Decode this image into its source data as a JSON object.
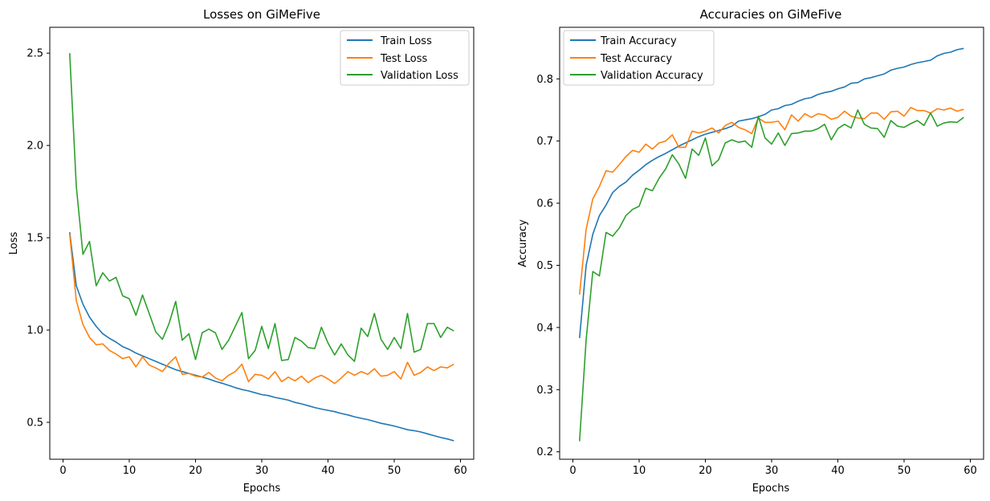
{
  "colors": {
    "train": "#1f77b4",
    "test": "#ff7f0e",
    "validation": "#2ca02c"
  },
  "chart_data": [
    {
      "type": "line",
      "title": "Losses on GiMeFive",
      "xlabel": "Epochs",
      "ylabel": "Loss",
      "xlim": [
        -2,
        62
      ],
      "ylim": [
        0.3,
        2.64
      ],
      "xticks": [
        0,
        10,
        20,
        30,
        40,
        50,
        60
      ],
      "yticks": [
        0.5,
        1.0,
        1.5,
        2.0,
        2.5
      ],
      "ytick_labels": [
        "0.5",
        "1.0",
        "1.5",
        "2.0",
        "2.5"
      ],
      "grid": false,
      "legend_position": "top-right",
      "x": [
        1,
        2,
        3,
        4,
        5,
        6,
        7,
        8,
        9,
        10,
        11,
        12,
        13,
        14,
        15,
        16,
        17,
        18,
        19,
        20,
        21,
        22,
        23,
        24,
        25,
        26,
        27,
        28,
        29,
        30,
        31,
        32,
        33,
        34,
        35,
        36,
        37,
        38,
        39,
        40,
        41,
        42,
        43,
        44,
        45,
        46,
        47,
        48,
        49,
        50,
        51,
        52,
        53,
        54,
        55,
        56,
        57,
        58,
        59
      ],
      "series": [
        {
          "name": "Train Loss",
          "color": "#1f77b4",
          "values": [
            1.53,
            1.24,
            1.14,
            1.07,
            1.02,
            0.98,
            0.955,
            0.935,
            0.91,
            0.895,
            0.875,
            0.86,
            0.845,
            0.83,
            0.815,
            0.8,
            0.785,
            0.775,
            0.765,
            0.755,
            0.745,
            0.735,
            0.722,
            0.712,
            0.7,
            0.688,
            0.678,
            0.67,
            0.66,
            0.65,
            0.645,
            0.635,
            0.628,
            0.62,
            0.608,
            0.6,
            0.59,
            0.58,
            0.572,
            0.565,
            0.558,
            0.548,
            0.54,
            0.53,
            0.522,
            0.515,
            0.505,
            0.495,
            0.488,
            0.48,
            0.47,
            0.46,
            0.455,
            0.448,
            0.438,
            0.428,
            0.418,
            0.41,
            0.4
          ]
        },
        {
          "name": "Test Loss",
          "color": "#ff7f0e",
          "values": [
            1.52,
            1.16,
            1.03,
            0.96,
            0.92,
            0.925,
            0.89,
            0.87,
            0.845,
            0.855,
            0.8,
            0.855,
            0.81,
            0.795,
            0.775,
            0.82,
            0.855,
            0.76,
            0.765,
            0.75,
            0.745,
            0.77,
            0.74,
            0.725,
            0.755,
            0.775,
            0.815,
            0.72,
            0.76,
            0.755,
            0.735,
            0.775,
            0.72,
            0.745,
            0.725,
            0.75,
            0.715,
            0.74,
            0.755,
            0.735,
            0.71,
            0.74,
            0.775,
            0.755,
            0.775,
            0.76,
            0.79,
            0.75,
            0.755,
            0.775,
            0.735,
            0.825,
            0.755,
            0.77,
            0.8,
            0.78,
            0.8,
            0.795,
            0.815
          ]
        },
        {
          "name": "Validation Loss",
          "color": "#2ca02c",
          "values": [
            2.5,
            1.78,
            1.41,
            1.48,
            1.24,
            1.31,
            1.265,
            1.285,
            1.185,
            1.17,
            1.08,
            1.19,
            1.09,
            0.99,
            0.95,
            1.035,
            1.155,
            0.945,
            0.98,
            0.84,
            0.985,
            1.005,
            0.985,
            0.895,
            0.945,
            1.02,
            1.095,
            0.845,
            0.89,
            1.02,
            0.9,
            1.035,
            0.835,
            0.84,
            0.96,
            0.94,
            0.905,
            0.9,
            1.015,
            0.93,
            0.865,
            0.925,
            0.865,
            0.83,
            1.01,
            0.965,
            1.09,
            0.95,
            0.895,
            0.96,
            0.9,
            1.09,
            0.88,
            0.895,
            1.035,
            1.035,
            0.96,
            1.015,
            0.995
          ]
        }
      ]
    },
    {
      "type": "line",
      "title": "Accuracies on GiMeFive",
      "xlabel": "Epochs",
      "ylabel": "Accuracy",
      "xlim": [
        -2,
        62
      ],
      "ylim": [
        0.188,
        0.883
      ],
      "xticks": [
        0,
        10,
        20,
        30,
        40,
        50,
        60
      ],
      "yticks": [
        0.2,
        0.3,
        0.4,
        0.5,
        0.6,
        0.7,
        0.8
      ],
      "ytick_labels": [
        "0.2",
        "0.3",
        "0.4",
        "0.5",
        "0.6",
        "0.7",
        "0.8"
      ],
      "grid": false,
      "legend_position": "top-left",
      "x": [
        1,
        2,
        3,
        4,
        5,
        6,
        7,
        8,
        9,
        10,
        11,
        12,
        13,
        14,
        15,
        16,
        17,
        18,
        19,
        20,
        21,
        22,
        23,
        24,
        25,
        26,
        27,
        28,
        29,
        30,
        31,
        32,
        33,
        34,
        35,
        36,
        37,
        38,
        39,
        40,
        41,
        42,
        43,
        44,
        45,
        46,
        47,
        48,
        49,
        50,
        51,
        52,
        53,
        54,
        55,
        56,
        57,
        58,
        59
      ],
      "series": [
        {
          "name": "Train Accuracy",
          "color": "#1f77b4",
          "values": [
            0.383,
            0.5,
            0.55,
            0.58,
            0.597,
            0.617,
            0.627,
            0.634,
            0.645,
            0.653,
            0.662,
            0.669,
            0.675,
            0.68,
            0.686,
            0.692,
            0.697,
            0.702,
            0.707,
            0.711,
            0.714,
            0.717,
            0.72,
            0.724,
            0.732,
            0.734,
            0.736,
            0.739,
            0.743,
            0.75,
            0.752,
            0.757,
            0.759,
            0.764,
            0.768,
            0.77,
            0.775,
            0.778,
            0.78,
            0.784,
            0.787,
            0.793,
            0.794,
            0.8,
            0.802,
            0.805,
            0.808,
            0.814,
            0.817,
            0.819,
            0.823,
            0.826,
            0.828,
            0.83,
            0.837,
            0.841,
            0.843,
            0.847,
            0.849
          ]
        },
        {
          "name": "Test Accuracy",
          "color": "#ff7f0e",
          "values": [
            0.453,
            0.558,
            0.607,
            0.627,
            0.652,
            0.65,
            0.662,
            0.675,
            0.685,
            0.682,
            0.695,
            0.687,
            0.697,
            0.7,
            0.71,
            0.69,
            0.69,
            0.716,
            0.713,
            0.716,
            0.721,
            0.713,
            0.725,
            0.73,
            0.722,
            0.718,
            0.712,
            0.737,
            0.73,
            0.73,
            0.732,
            0.718,
            0.742,
            0.732,
            0.744,
            0.738,
            0.744,
            0.742,
            0.735,
            0.738,
            0.748,
            0.74,
            0.737,
            0.736,
            0.745,
            0.745,
            0.735,
            0.747,
            0.748,
            0.74,
            0.754,
            0.749,
            0.749,
            0.745,
            0.752,
            0.75,
            0.753,
            0.748,
            0.751
          ]
        },
        {
          "name": "Validation Accuracy",
          "color": "#2ca02c",
          "values": [
            0.217,
            0.38,
            0.49,
            0.483,
            0.553,
            0.547,
            0.56,
            0.58,
            0.59,
            0.595,
            0.624,
            0.62,
            0.64,
            0.655,
            0.678,
            0.663,
            0.64,
            0.687,
            0.677,
            0.705,
            0.66,
            0.67,
            0.697,
            0.702,
            0.698,
            0.7,
            0.69,
            0.74,
            0.705,
            0.695,
            0.713,
            0.693,
            0.712,
            0.713,
            0.716,
            0.716,
            0.72,
            0.727,
            0.702,
            0.72,
            0.727,
            0.721,
            0.75,
            0.727,
            0.721,
            0.72,
            0.706,
            0.733,
            0.724,
            0.722,
            0.728,
            0.733,
            0.725,
            0.745,
            0.724,
            0.729,
            0.731,
            0.73,
            0.738
          ]
        }
      ]
    }
  ]
}
